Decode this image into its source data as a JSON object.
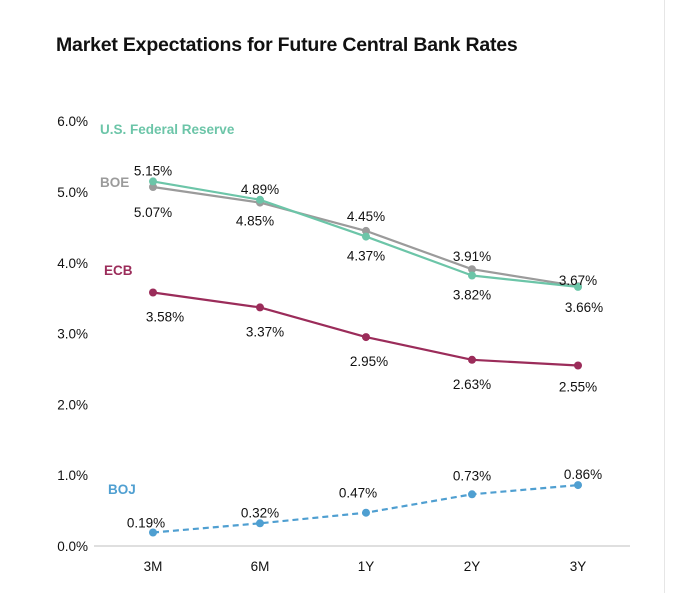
{
  "chart_data": {
    "type": "line",
    "title": "Market Expectations for Future Central Bank Rates",
    "xlabel": "",
    "ylabel": "",
    "categories": [
      "3M",
      "6M",
      "1Y",
      "2Y",
      "3Y"
    ],
    "ylim": [
      0,
      6
    ],
    "yticks": [
      "0.0%",
      "1.0%",
      "2.0%",
      "3.0%",
      "4.0%",
      "5.0%",
      "6.0%"
    ],
    "grid": false,
    "legend": "inline labels at left of each series",
    "series": [
      {
        "name": "U.S. Federal Reserve",
        "color": "#6cc5a8",
        "style": "solid",
        "values": [
          5.15,
          4.89,
          4.37,
          3.82,
          3.66
        ],
        "labels": [
          "5.15%",
          "4.89%",
          "4.37%",
          "3.82%",
          "3.66%"
        ]
      },
      {
        "name": "BOE",
        "color": "#9b9b9b",
        "style": "solid",
        "values": [
          5.07,
          4.85,
          4.45,
          3.91,
          3.67
        ],
        "labels": [
          "5.07%",
          "4.85%",
          "4.45%",
          "3.91%",
          "3.67%"
        ]
      },
      {
        "name": "ECB",
        "color": "#9b2c5a",
        "style": "solid",
        "values": [
          3.58,
          3.37,
          2.95,
          2.63,
          2.55
        ],
        "labels": [
          "3.58%",
          "3.37%",
          "2.95%",
          "2.63%",
          "2.55%"
        ]
      },
      {
        "name": "BOJ",
        "color": "#4f9fd1",
        "style": "dashed",
        "values": [
          0.19,
          0.32,
          0.47,
          0.73,
          0.86
        ],
        "labels": [
          "0.19%",
          "0.32%",
          "0.47%",
          "0.73%",
          "0.86%"
        ]
      }
    ]
  }
}
